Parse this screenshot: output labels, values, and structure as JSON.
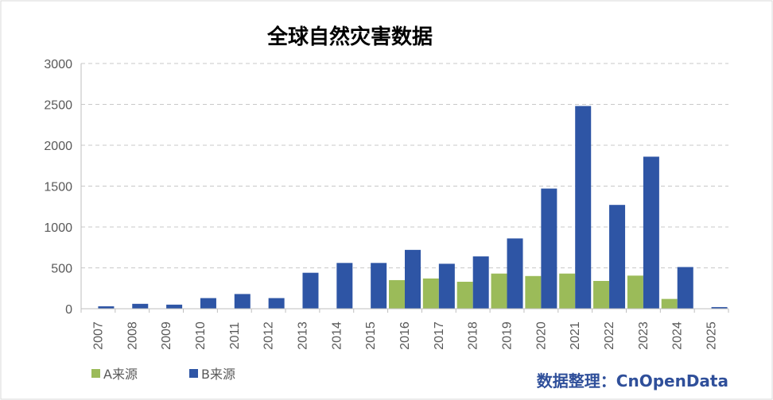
{
  "chart_data": {
    "type": "bar",
    "title": "全球自然灾害数据",
    "categories": [
      "2007",
      "2008",
      "2009",
      "2010",
      "2011",
      "2012",
      "2013",
      "2014",
      "2015",
      "2016",
      "2017",
      "2018",
      "2019",
      "2020",
      "2021",
      "2022",
      "2023",
      "2024",
      "2025"
    ],
    "series": [
      {
        "name": "A来源",
        "color": "#9bbb59",
        "values": [
          null,
          null,
          null,
          null,
          null,
          null,
          null,
          null,
          null,
          350,
          370,
          330,
          430,
          400,
          430,
          340,
          405,
          120,
          null
        ]
      },
      {
        "name": "B来源",
        "color": "#2e55a5",
        "values": [
          30,
          60,
          50,
          130,
          180,
          130,
          440,
          560,
          560,
          720,
          550,
          640,
          860,
          1470,
          2480,
          1270,
          1860,
          510,
          20
        ]
      }
    ],
    "xlabel": "",
    "ylabel": "",
    "ylim": [
      0,
      3000
    ],
    "yticks": [
      0,
      500,
      1000,
      1500,
      2000,
      2500,
      3000
    ],
    "grid": true,
    "legend_position": "bottom-left",
    "credit": "数据整理：CnOpenData"
  }
}
